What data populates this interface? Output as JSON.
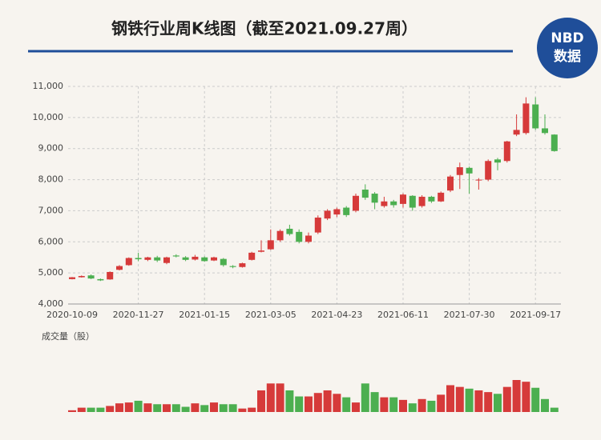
{
  "logo": [
    "NBD",
    "数据"
  ],
  "chart_data": {
    "type": "candlestick",
    "title": "钢铁行业周K线图（截至2021.09.27周）",
    "volume_label": "成交量（股）",
    "categories": [
      "2020-10-09",
      null,
      null,
      null,
      null,
      null,
      null,
      "2020-11-27",
      null,
      null,
      null,
      null,
      null,
      null,
      "2021-01-15",
      null,
      null,
      null,
      null,
      null,
      null,
      "2021-03-05",
      null,
      null,
      null,
      null,
      null,
      null,
      "2021-04-23",
      null,
      null,
      null,
      null,
      null,
      null,
      "2021-06-11",
      null,
      null,
      null,
      null,
      null,
      null,
      "2021-07-30",
      null,
      null,
      null,
      null,
      null,
      null,
      "2021-09-17",
      null,
      null
    ],
    "open": [
      4800,
      4860,
      4920,
      4800,
      4790,
      5100,
      5250,
      5480,
      5420,
      5500,
      5320,
      5560,
      5500,
      5430,
      5500,
      5400,
      5450,
      5220,
      5190,
      5420,
      5680,
      5760,
      6050,
      6420,
      6320,
      6000,
      6300,
      6750,
      6880,
      7100,
      7000,
      7680,
      7550,
      7150,
      7300,
      7220,
      7480,
      7150,
      7450,
      7300,
      7650,
      8150,
      8380,
      7980,
      8000,
      8650,
      8600,
      9450,
      9500,
      10420,
      9650,
      9450
    ],
    "high": [
      4870,
      4920,
      4950,
      4820,
      5050,
      5250,
      5500,
      5650,
      5520,
      5550,
      5520,
      5600,
      5540,
      5580,
      5530,
      5520,
      5480,
      5250,
      5330,
      5680,
      6050,
      6400,
      6400,
      6550,
      6400,
      6300,
      6850,
      7050,
      7100,
      7150,
      7550,
      7850,
      7600,
      7450,
      7350,
      7560,
      7500,
      7500,
      7480,
      7620,
      8150,
      8550,
      8420,
      8050,
      8650,
      8700,
      9250,
      10100,
      10650,
      10650,
      10100,
      9460
    ],
    "low": [
      4790,
      4850,
      4800,
      4740,
      4780,
      5080,
      5230,
      5380,
      5380,
      5350,
      5280,
      5500,
      5380,
      5400,
      5360,
      5380,
      5200,
      5150,
      5170,
      5400,
      5660,
      5740,
      6000,
      6200,
      5950,
      5950,
      6250,
      6700,
      6800,
      6800,
      6950,
      7350,
      7050,
      7100,
      7100,
      7100,
      7000,
      7100,
      7250,
      7280,
      7600,
      7700,
      7550,
      7680,
      7950,
      8300,
      8550,
      9400,
      9450,
      9600,
      9450,
      8900
    ],
    "close": [
      4860,
      4900,
      4820,
      4760,
      5030,
      5220,
      5480,
      5440,
      5500,
      5400,
      5500,
      5530,
      5420,
      5520,
      5380,
      5500,
      5250,
      5190,
      5310,
      5650,
      5720,
      6050,
      6350,
      6250,
      6000,
      6200,
      6780,
      7000,
      7050,
      6860,
      7480,
      7420,
      7260,
      7300,
      7180,
      7520,
      7100,
      7450,
      7300,
      7580,
      8100,
      8400,
      8200,
      8000,
      8600,
      8550,
      9230,
      9600,
      10450,
      9650,
      9500,
      8920
    ],
    "volume": [
      2,
      5,
      5,
      5,
      7,
      10,
      11,
      13,
      10,
      9,
      9,
      9,
      6,
      10,
      8,
      11,
      9,
      9,
      4,
      5,
      25,
      33,
      33,
      25,
      18,
      18,
      22,
      25,
      21,
      17,
      11,
      33,
      23,
      17,
      17,
      14,
      10,
      15,
      13,
      20,
      31,
      29,
      27,
      25,
      23,
      21,
      29,
      37,
      35,
      28,
      15,
      5
    ],
    "ylim": [
      4000,
      11000
    ],
    "yticks": [
      {
        "value": 4000,
        "label": "4,000"
      },
      {
        "value": 5000,
        "label": "5,000"
      },
      {
        "value": 6000,
        "label": "6,000"
      },
      {
        "value": 7000,
        "label": "7,000"
      },
      {
        "value": 8000,
        "label": "8,000"
      },
      {
        "value": 9000,
        "label": "9,000"
      },
      {
        "value": 10000,
        "label": "10,000"
      },
      {
        "value": 11000,
        "label": "11,000"
      }
    ],
    "up_color": "#d63a3a",
    "down_color": "#4caf50",
    "grid": true
  }
}
